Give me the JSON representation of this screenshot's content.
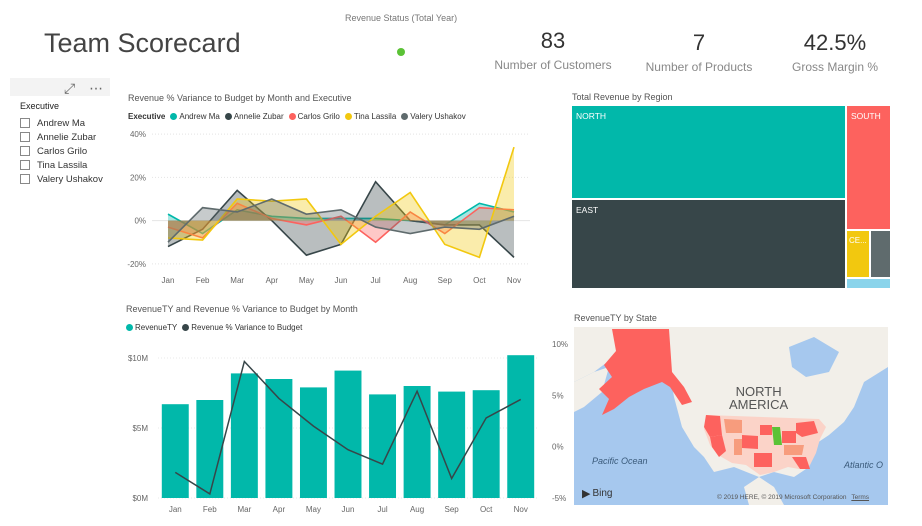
{
  "page": {
    "title": "Team Scorecard"
  },
  "revenue_status": {
    "label": "Revenue Status (Total Year)",
    "status_color": "#5bc236"
  },
  "kpis": [
    {
      "value": "83",
      "label": "Number of Customers"
    },
    {
      "value": "7",
      "label": "Number of Products"
    },
    {
      "value": "42.5%",
      "label": "Gross Margin %"
    }
  ],
  "slicer": {
    "tool_icons": [
      "focus-mode-icon",
      "more-options-icon"
    ],
    "header": "Executive",
    "items": [
      "Andrew Ma",
      "Annelie Zubar",
      "Carlos Grilo",
      "Tina Lassila",
      "Valery Ushakov"
    ]
  },
  "variance_chart": {
    "title": "Revenue % Variance to Budget by Month and Executive",
    "legend_title": "Executive",
    "chart_data": {
      "type": "area",
      "categories": [
        "Jan",
        "Feb",
        "Mar",
        "Apr",
        "May",
        "Jun",
        "Jul",
        "Aug",
        "Sep",
        "Oct",
        "Nov"
      ],
      "ytick_labels": [
        "40%",
        "20%",
        "0%",
        "-20%"
      ],
      "yticks": [
        40,
        20,
        0,
        -20
      ],
      "ylim": [
        -21,
        41
      ],
      "series": [
        {
          "name": "Andrew Ma",
          "color": "#01b8aa",
          "values": [
            3,
            -6,
            5,
            2,
            1,
            1,
            1,
            0,
            -2,
            8,
            4
          ]
        },
        {
          "name": "Annelie Zubar",
          "color": "#374649",
          "values": [
            -12,
            -4,
            14,
            0,
            -16,
            -11,
            18,
            0,
            -2,
            -2,
            -17
          ]
        },
        {
          "name": "Carlos Grilo",
          "color": "#fd625e",
          "values": [
            -3,
            -8,
            8,
            1,
            -2,
            2,
            -10,
            4,
            -6,
            6,
            5
          ]
        },
        {
          "name": "Tina Lassila",
          "color": "#f2c80f",
          "values": [
            -8,
            -9,
            10,
            9,
            10,
            -11,
            2,
            13,
            -11,
            -17,
            34
          ]
        },
        {
          "name": "Valery Ushakov",
          "color": "#5f6b6d",
          "values": [
            -10,
            6,
            4,
            10,
            3,
            5,
            -3,
            -6,
            -3,
            -4,
            2
          ]
        }
      ]
    }
  },
  "combo_chart": {
    "title": "RevenueTY and Revenue % Variance to Budget by Month",
    "legend": [
      {
        "name": "RevenueTY",
        "color": "#01b8aa"
      },
      {
        "name": "Revenue % Variance to Budget",
        "color": "#374649"
      }
    ],
    "chart_data": {
      "type": "bar",
      "categories": [
        "Jan",
        "Feb",
        "Mar",
        "Apr",
        "May",
        "Jun",
        "Jul",
        "Aug",
        "Sep",
        "Oct",
        "Nov"
      ],
      "ylim_left": [
        0,
        11
      ],
      "ylim_right": [
        -5,
        10
      ],
      "left_tick_labels": [
        "$10M",
        "$5M",
        "$0M"
      ],
      "left_ticks": [
        10,
        5,
        0
      ],
      "right_tick_labels": [
        "10%",
        "5%",
        "0%",
        "-5%"
      ],
      "right_ticks": [
        10,
        5,
        0,
        -5
      ],
      "series": [
        {
          "name": "RevenueTY",
          "unit": "$M",
          "type": "bar",
          "color": "#01b8aa",
          "values": [
            6.7,
            7.0,
            8.9,
            8.5,
            7.9,
            9.1,
            7.4,
            8.0,
            7.6,
            7.7,
            10.2
          ]
        },
        {
          "name": "Revenue % Variance to Budget",
          "unit": "%",
          "type": "line",
          "color": "#374649",
          "values": [
            -2.5,
            -4.6,
            8.3,
            4.7,
            2.0,
            -0.3,
            -1.7,
            5.4,
            -3.1,
            2.8,
            4.6
          ]
        }
      ]
    }
  },
  "treemap": {
    "title": "Total Revenue by Region",
    "chart_data": {
      "type": "treemap",
      "items": [
        {
          "label": "NORTH",
          "color": "#01b8aa"
        },
        {
          "label": "EAST",
          "color": "#374649"
        },
        {
          "label": "SOUTH",
          "color": "#fd625e"
        },
        {
          "label": "CE...",
          "color": "#f2c80f"
        },
        {
          "label": "",
          "color": "#5f6b6d"
        },
        {
          "label": "",
          "color": "#8ad4eb"
        }
      ]
    }
  },
  "map": {
    "title": "RevenueTY by State",
    "labels": {
      "continent_line1": "NORTH",
      "continent_line2": "AMERICA",
      "pacific": "Pacific Ocean",
      "atlantic": "Atlantic O"
    },
    "provider": "Bing",
    "copyright": "© 2019 HERE, © 2019 Microsoft Corporation",
    "terms": "Terms",
    "colors": {
      "water": "#a6c8ee",
      "land": "#f2efe9",
      "high": "#fd625e",
      "mid": "#f79c7d",
      "low": "#5bc236"
    }
  }
}
